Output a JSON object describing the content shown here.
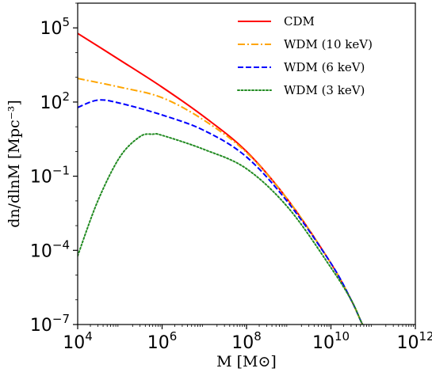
{
  "chart_data": {
    "type": "line",
    "title": "",
    "xlabel": "M [M⊙]",
    "ylabel": "dn/dlnM [Mpc⁻³]",
    "xscale": "log",
    "yscale": "log",
    "xlim": [
      10000,
      1000000000000
    ],
    "ylim": [
      1e-07,
      1000000
    ],
    "grid": false,
    "legend_position": "top-right",
    "x_ticks": [
      {
        "value": 10000,
        "base": "10",
        "exp": "4"
      },
      {
        "value": 1000000,
        "base": "10",
        "exp": "6"
      },
      {
        "value": 100000000,
        "base": "10",
        "exp": "8"
      },
      {
        "value": 10000000000,
        "base": "10",
        "exp": "10"
      },
      {
        "value": 1000000000000,
        "base": "10",
        "exp": "12"
      }
    ],
    "y_ticks": [
      {
        "value": 1e-07,
        "base": "10",
        "exp": "−7"
      },
      {
        "value": 0.0001,
        "base": "10",
        "exp": "−4"
      },
      {
        "value": 0.1,
        "base": "10",
        "exp": "−1"
      },
      {
        "value": 100,
        "base": "10",
        "exp": "2"
      },
      {
        "value": 100000,
        "base": "10",
        "exp": "5"
      }
    ],
    "series": [
      {
        "name": "CDM",
        "color": "#ff0000",
        "style": "solid",
        "x": [
          10000,
          100000,
          1000000,
          10000000,
          100000000,
          1000000000,
          10000000000,
          30000000000,
          50000000000,
          56000000000
        ],
        "y": [
          60000,
          5000,
          400,
          25,
          1,
          0.01,
          3e-05,
          1e-06,
          1.5e-07,
          1e-07
        ]
      },
      {
        "name": "WDM (10 keV)",
        "color": "#ffa500",
        "style": "dashdot",
        "x": [
          10000,
          100000,
          1000000,
          10000000,
          100000000,
          1000000000,
          10000000000,
          30000000000,
          50000000000,
          56000000000
        ],
        "y": [
          900,
          400,
          150,
          18,
          0.9,
          0.01,
          3e-05,
          1e-06,
          1.5e-07,
          1e-07
        ]
      },
      {
        "name": "WDM (6 keV)",
        "color": "#0000ff",
        "style": "dashed",
        "x": [
          10000,
          30000,
          100000,
          1000000,
          10000000,
          100000000,
          1000000000,
          10000000000,
          30000000000,
          50000000000,
          56000000000
        ],
        "y": [
          60,
          120,
          90,
          30,
          7,
          0.6,
          0.008,
          3e-05,
          1e-06,
          1.5e-07,
          1e-07
        ]
      },
      {
        "name": "WDM (3 keV)",
        "color": "#228b22",
        "style": "dotted",
        "x": [
          10000,
          30000,
          100000,
          300000,
          600000,
          1000000,
          10000000,
          100000000,
          1000000000,
          10000000000,
          30000000000,
          50000000000,
          56000000000
        ],
        "y": [
          6e-05,
          0.01,
          0.6,
          4,
          5,
          4.5,
          1.2,
          0.2,
          0.005,
          2e-05,
          1e-06,
          1.5e-07,
          1e-07
        ]
      }
    ]
  }
}
